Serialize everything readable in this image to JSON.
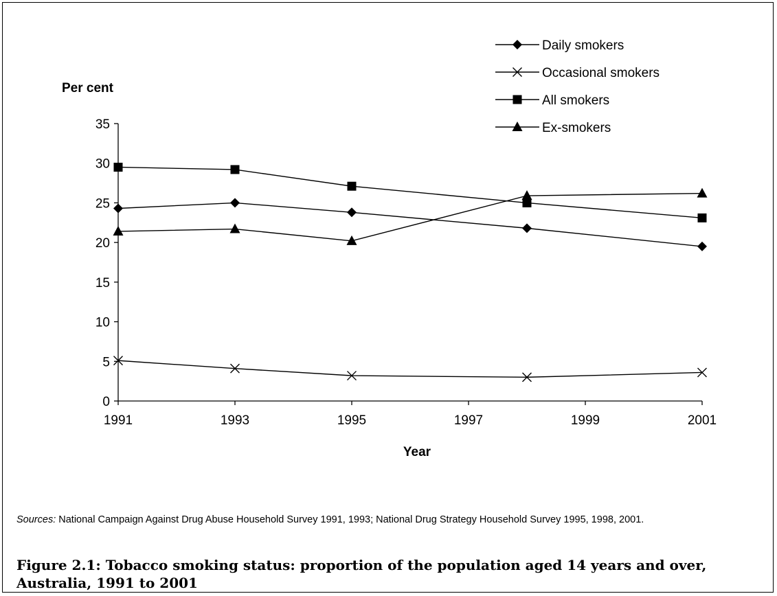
{
  "chart_data": {
    "type": "line",
    "xlabel": "Year",
    "ylabel": "Per cent",
    "xlim": [
      1991,
      2001
    ],
    "ylim": [
      0,
      35
    ],
    "xticks": [
      "1991",
      "1993",
      "1995",
      "1997",
      "1999",
      "2001"
    ],
    "yticks": [
      "0",
      "5",
      "10",
      "15",
      "20",
      "25",
      "30",
      "35"
    ],
    "grid": false,
    "legend_position": "top-right",
    "series": [
      {
        "name": "Daily smokers",
        "marker": "diamond",
        "points": [
          [
            1991,
            24.3
          ],
          [
            1993,
            25.0
          ],
          [
            1995,
            23.8
          ],
          [
            1998,
            21.8
          ],
          [
            2001,
            19.5
          ]
        ]
      },
      {
        "name": "Occasional smokers",
        "marker": "cross",
        "points": [
          [
            1991,
            5.1
          ],
          [
            1993,
            4.1
          ],
          [
            1995,
            3.2
          ],
          [
            1998,
            3.0
          ],
          [
            2001,
            3.6
          ]
        ]
      },
      {
        "name": "All smokers",
        "marker": "square",
        "points": [
          [
            1991,
            29.5
          ],
          [
            1993,
            29.2
          ],
          [
            1995,
            27.1
          ],
          [
            1998,
            25.0
          ],
          [
            2001,
            23.1
          ]
        ]
      },
      {
        "name": "Ex-smokers",
        "marker": "triangle",
        "points": [
          [
            1991,
            21.4
          ],
          [
            1993,
            21.7
          ],
          [
            1995,
            20.2
          ],
          [
            1998,
            25.9
          ],
          [
            2001,
            26.2
          ]
        ]
      }
    ]
  },
  "sources": {
    "lead": "Sources:",
    "text": " National Campaign Against Drug Abuse Household Survey 1991, 1993; National Drug Strategy Household Survey 1995, 1998, 2001."
  },
  "caption": "Figure 2.1: Tobacco smoking status: proportion of the population aged 14 years and over, Australia, 1991 to 2001"
}
